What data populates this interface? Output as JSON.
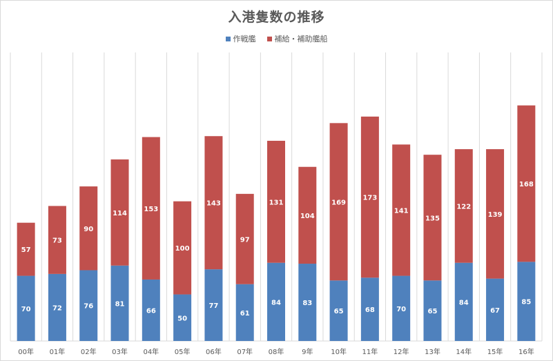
{
  "chart_data": {
    "type": "bar",
    "stacked": true,
    "title": "入港隻数の推移",
    "categories": [
      "00年",
      "01年",
      "02年",
      "03年",
      "04年",
      "05年",
      "06年",
      "07年",
      "08年",
      "9年",
      "10年",
      "11年",
      "12年",
      "13年",
      "14年",
      "15年",
      "16年"
    ],
    "series": [
      {
        "name": "作戦艦",
        "color": "#4f81bd",
        "values": [
          70,
          72,
          76,
          81,
          66,
          50,
          77,
          61,
          84,
          83,
          65,
          68,
          70,
          65,
          84,
          67,
          85
        ]
      },
      {
        "name": "補給・補助艦船",
        "color": "#c0504d",
        "values": [
          57,
          73,
          90,
          114,
          153,
          100,
          143,
          97,
          131,
          104,
          169,
          173,
          141,
          135,
          122,
          139,
          168
        ]
      }
    ],
    "ylim": [
      0,
      260
    ],
    "grid": "vertical",
    "legend": "top-center",
    "data_labels": true
  }
}
